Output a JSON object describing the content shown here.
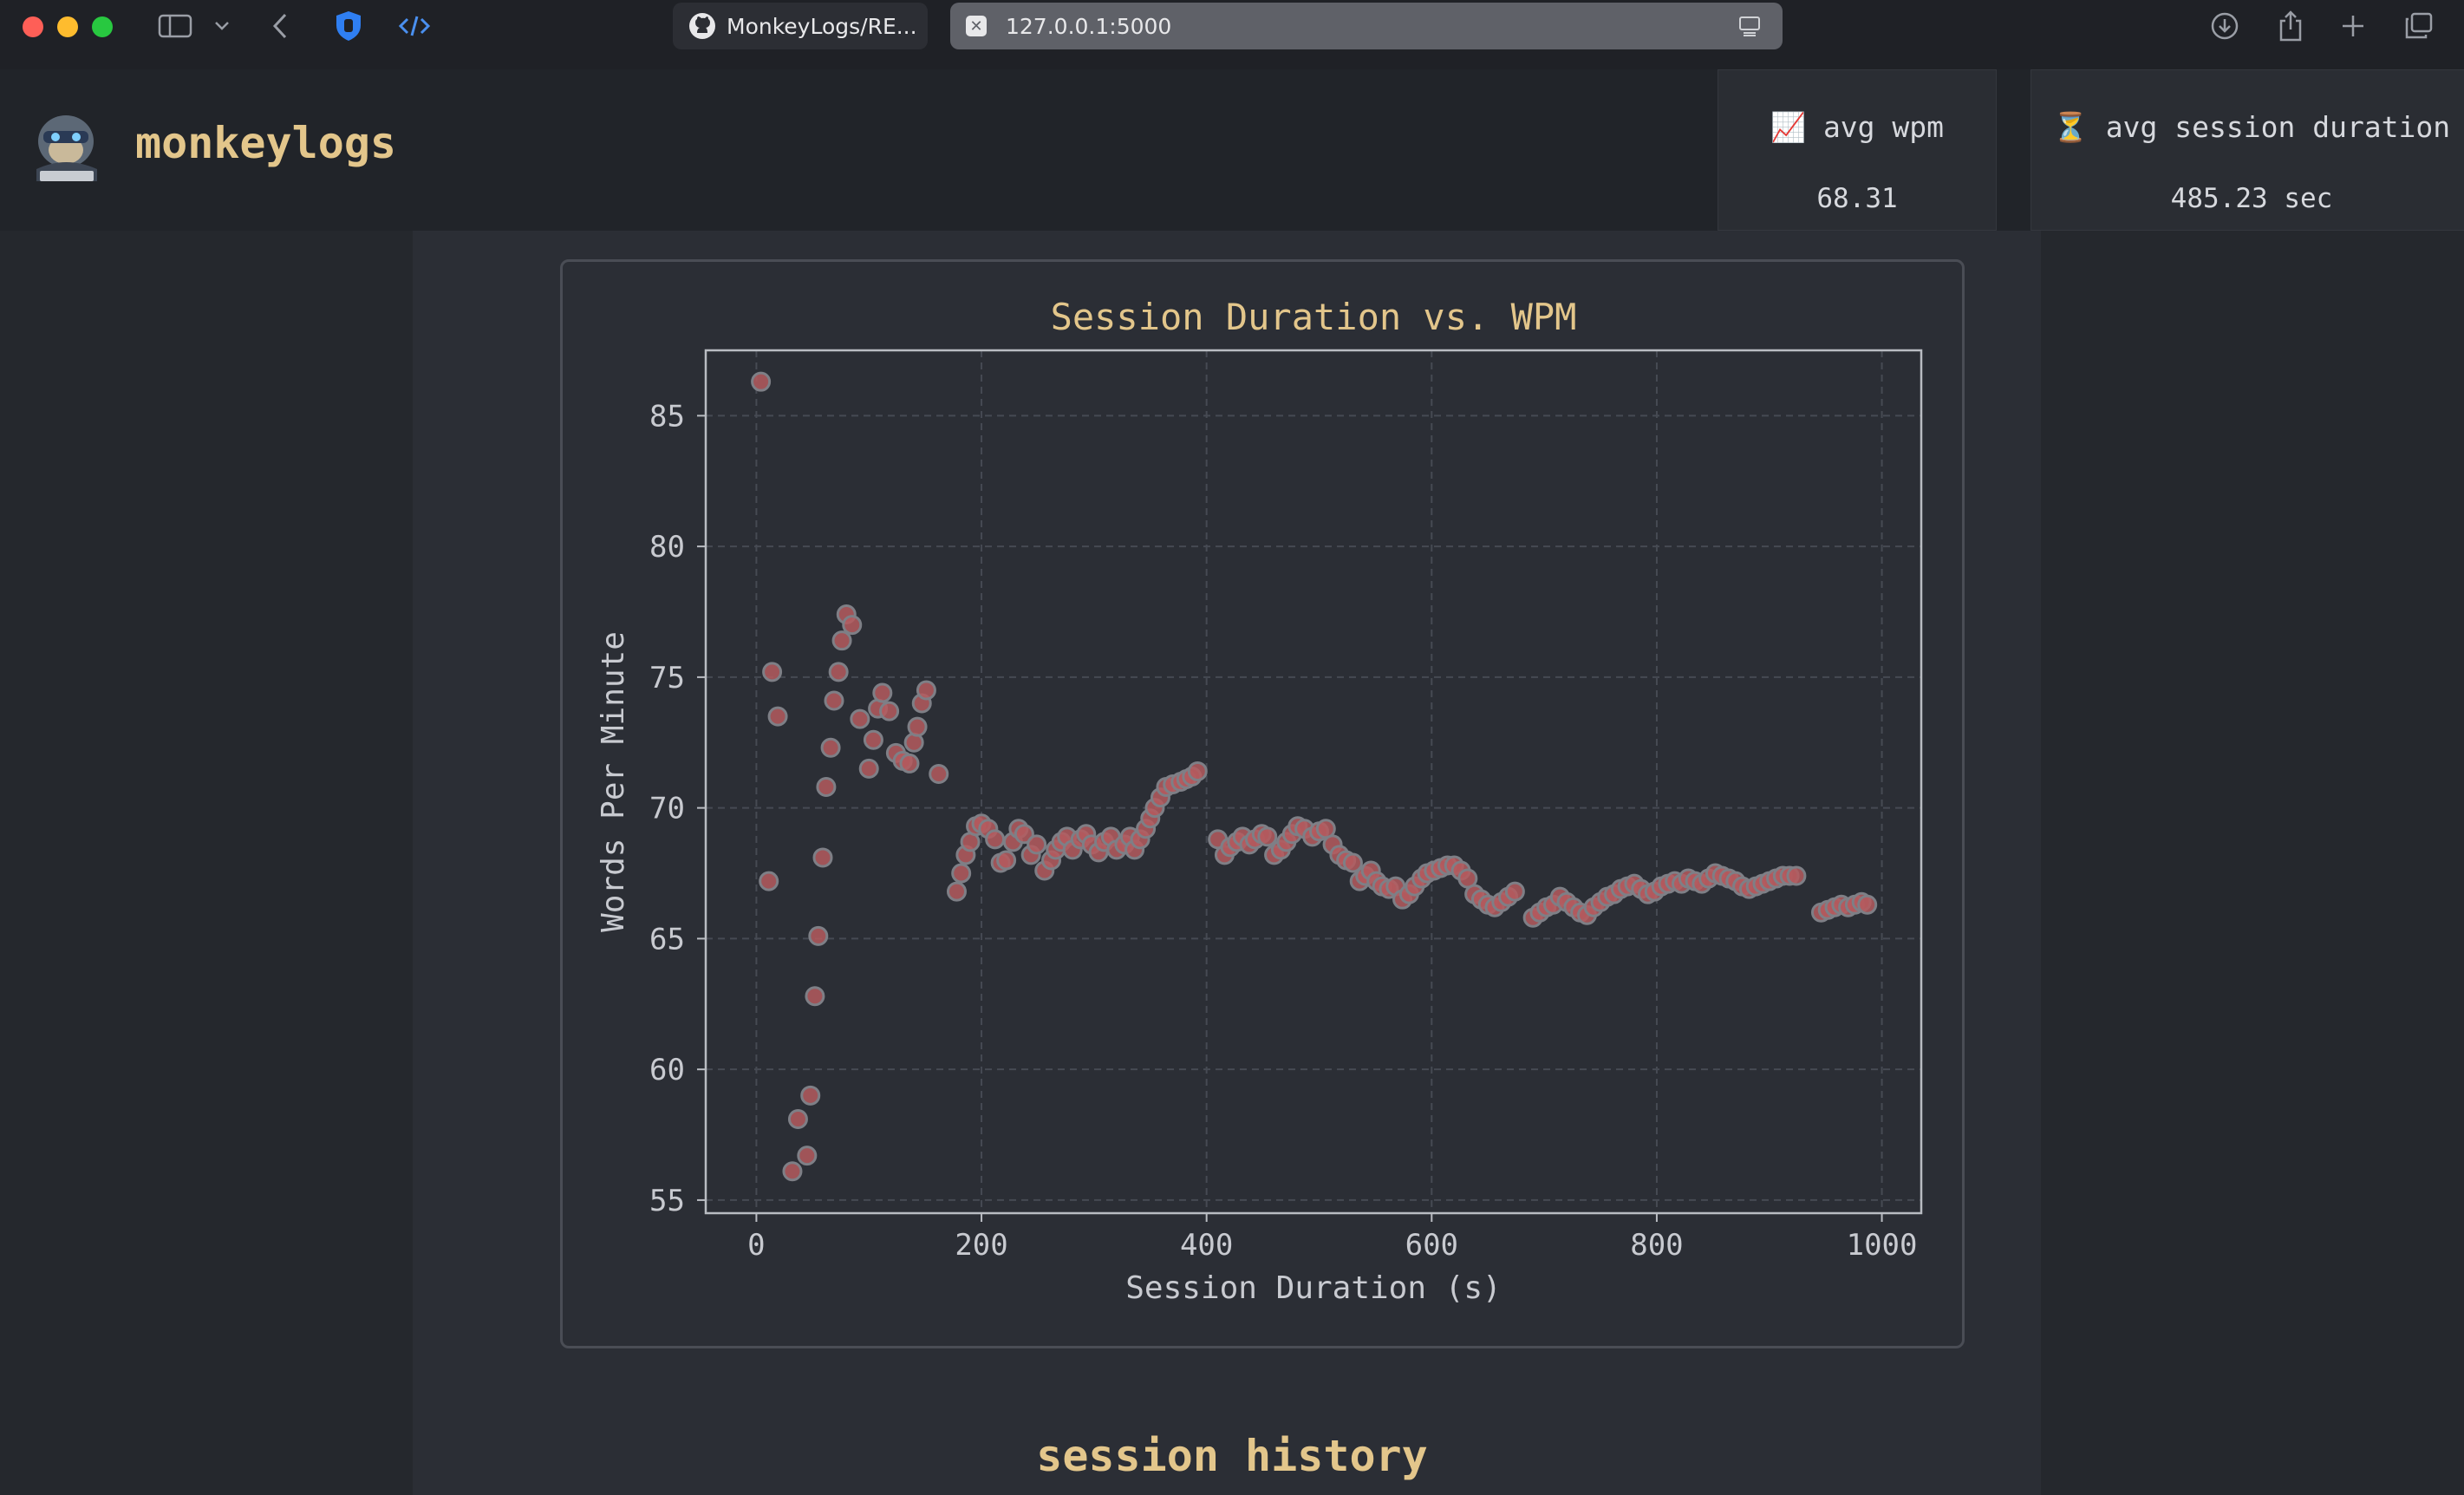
{
  "browser": {
    "tabs": [
      {
        "label": "MonkeyLogs/RE...",
        "active": false
      },
      {
        "label": "127.0.0.1:5000",
        "active": true
      }
    ]
  },
  "app": {
    "brand": "monkeylogs",
    "stats": [
      {
        "icon": "📈",
        "label": "avg wpm",
        "value": "68.31"
      },
      {
        "icon": "⏳",
        "label": "avg session duration",
        "value": "485.23 sec"
      }
    ]
  },
  "section": {
    "title": "session history"
  },
  "colors": {
    "accent": "#e3c68b",
    "point_fill": "#b55a5e",
    "point_edge": "#7e7f86"
  },
  "chart_data": {
    "type": "scatter",
    "title": "Session Duration vs. WPM",
    "xlabel": "Session Duration (s)",
    "ylabel": "Words Per Minute",
    "xlim": [
      -45,
      1035
    ],
    "ylim": [
      54.5,
      87.5
    ],
    "xticks": [
      0,
      200,
      400,
      600,
      800,
      1000
    ],
    "yticks": [
      55,
      60,
      65,
      70,
      75,
      80,
      85
    ],
    "grid": true,
    "series": [
      {
        "points": [
          [
            4,
            86.3
          ],
          [
            11,
            67.2
          ],
          [
            14,
            75.2
          ],
          [
            19,
            73.5
          ],
          [
            32,
            56.1
          ],
          [
            37,
            58.1
          ],
          [
            45,
            56.7
          ],
          [
            48,
            59.0
          ],
          [
            52,
            62.8
          ],
          [
            55,
            65.1
          ],
          [
            59,
            68.1
          ],
          [
            62,
            70.8
          ],
          [
            66,
            72.3
          ],
          [
            69,
            74.1
          ],
          [
            73,
            75.2
          ],
          [
            76,
            76.4
          ],
          [
            80,
            77.4
          ],
          [
            85,
            77.0
          ],
          [
            92,
            73.4
          ],
          [
            100,
            71.5
          ],
          [
            104,
            72.6
          ],
          [
            108,
            73.8
          ],
          [
            112,
            74.4
          ],
          [
            118,
            73.7
          ],
          [
            124,
            72.1
          ],
          [
            130,
            71.8
          ],
          [
            136,
            71.7
          ],
          [
            140,
            72.5
          ],
          [
            143,
            73.1
          ],
          [
            147,
            74.0
          ],
          [
            151,
            74.5
          ],
          [
            162,
            71.3
          ],
          [
            178,
            66.8
          ],
          [
            182,
            67.5
          ],
          [
            186,
            68.2
          ],
          [
            190,
            68.7
          ],
          [
            195,
            69.3
          ],
          [
            200,
            69.4
          ],
          [
            206,
            69.2
          ],
          [
            212,
            68.8
          ],
          [
            217,
            67.9
          ],
          [
            222,
            68.0
          ],
          [
            228,
            68.7
          ],
          [
            233,
            69.2
          ],
          [
            238,
            69.0
          ],
          [
            244,
            68.2
          ],
          [
            249,
            68.6
          ],
          [
            256,
            67.6
          ],
          [
            262,
            68.0
          ],
          [
            266,
            68.4
          ],
          [
            271,
            68.7
          ],
          [
            276,
            68.9
          ],
          [
            281,
            68.4
          ],
          [
            288,
            68.8
          ],
          [
            293,
            69.0
          ],
          [
            298,
            68.6
          ],
          [
            304,
            68.3
          ],
          [
            309,
            68.7
          ],
          [
            315,
            68.9
          ],
          [
            320,
            68.4
          ],
          [
            327,
            68.6
          ],
          [
            332,
            68.9
          ],
          [
            336,
            68.4
          ],
          [
            341,
            68.8
          ],
          [
            346,
            69.2
          ],
          [
            350,
            69.6
          ],
          [
            354,
            70.0
          ],
          [
            359,
            70.4
          ],
          [
            364,
            70.8
          ],
          [
            370,
            70.9
          ],
          [
            377,
            71.0
          ],
          [
            382,
            71.1
          ],
          [
            387,
            71.2
          ],
          [
            392,
            71.4
          ],
          [
            410,
            68.8
          ],
          [
            416,
            68.2
          ],
          [
            421,
            68.5
          ],
          [
            427,
            68.7
          ],
          [
            432,
            68.9
          ],
          [
            438,
            68.6
          ],
          [
            443,
            68.8
          ],
          [
            449,
            69.0
          ],
          [
            454,
            68.9
          ],
          [
            460,
            68.2
          ],
          [
            466,
            68.4
          ],
          [
            471,
            68.7
          ],
          [
            476,
            69.0
          ],
          [
            481,
            69.3
          ],
          [
            487,
            69.2
          ],
          [
            494,
            68.9
          ],
          [
            500,
            69.1
          ],
          [
            506,
            69.2
          ],
          [
            512,
            68.6
          ],
          [
            518,
            68.2
          ],
          [
            524,
            68.0
          ],
          [
            530,
            67.9
          ],
          [
            536,
            67.2
          ],
          [
            541,
            67.4
          ],
          [
            546,
            67.6
          ],
          [
            551,
            67.2
          ],
          [
            556,
            67.0
          ],
          [
            562,
            66.9
          ],
          [
            568,
            67.0
          ],
          [
            574,
            66.5
          ],
          [
            580,
            66.7
          ],
          [
            585,
            67.0
          ],
          [
            591,
            67.3
          ],
          [
            596,
            67.5
          ],
          [
            602,
            67.6
          ],
          [
            608,
            67.7
          ],
          [
            614,
            67.8
          ],
          [
            620,
            67.8
          ],
          [
            626,
            67.6
          ],
          [
            632,
            67.3
          ],
          [
            638,
            66.7
          ],
          [
            644,
            66.5
          ],
          [
            650,
            66.3
          ],
          [
            656,
            66.2
          ],
          [
            662,
            66.4
          ],
          [
            668,
            66.6
          ],
          [
            674,
            66.8
          ],
          [
            690,
            65.8
          ],
          [
            696,
            66.0
          ],
          [
            702,
            66.2
          ],
          [
            708,
            66.3
          ],
          [
            714,
            66.6
          ],
          [
            720,
            66.4
          ],
          [
            726,
            66.2
          ],
          [
            732,
            66.0
          ],
          [
            738,
            65.9
          ],
          [
            744,
            66.2
          ],
          [
            750,
            66.4
          ],
          [
            756,
            66.6
          ],
          [
            762,
            66.7
          ],
          [
            768,
            66.9
          ],
          [
            774,
            67.0
          ],
          [
            780,
            67.1
          ],
          [
            786,
            66.9
          ],
          [
            792,
            66.7
          ],
          [
            798,
            66.8
          ],
          [
            804,
            67.0
          ],
          [
            810,
            67.1
          ],
          [
            816,
            67.2
          ],
          [
            822,
            67.1
          ],
          [
            828,
            67.3
          ],
          [
            834,
            67.2
          ],
          [
            840,
            67.1
          ],
          [
            846,
            67.3
          ],
          [
            852,
            67.5
          ],
          [
            858,
            67.4
          ],
          [
            864,
            67.3
          ],
          [
            870,
            67.2
          ],
          [
            876,
            67.0
          ],
          [
            882,
            66.9
          ],
          [
            888,
            67.0
          ],
          [
            894,
            67.1
          ],
          [
            900,
            67.2
          ],
          [
            906,
            67.3
          ],
          [
            912,
            67.4
          ],
          [
            918,
            67.4
          ],
          [
            924,
            67.4
          ],
          [
            946,
            66.0
          ],
          [
            952,
            66.1
          ],
          [
            958,
            66.2
          ],
          [
            964,
            66.3
          ],
          [
            970,
            66.2
          ],
          [
            976,
            66.3
          ],
          [
            982,
            66.4
          ],
          [
            987,
            66.3
          ]
        ]
      }
    ]
  }
}
